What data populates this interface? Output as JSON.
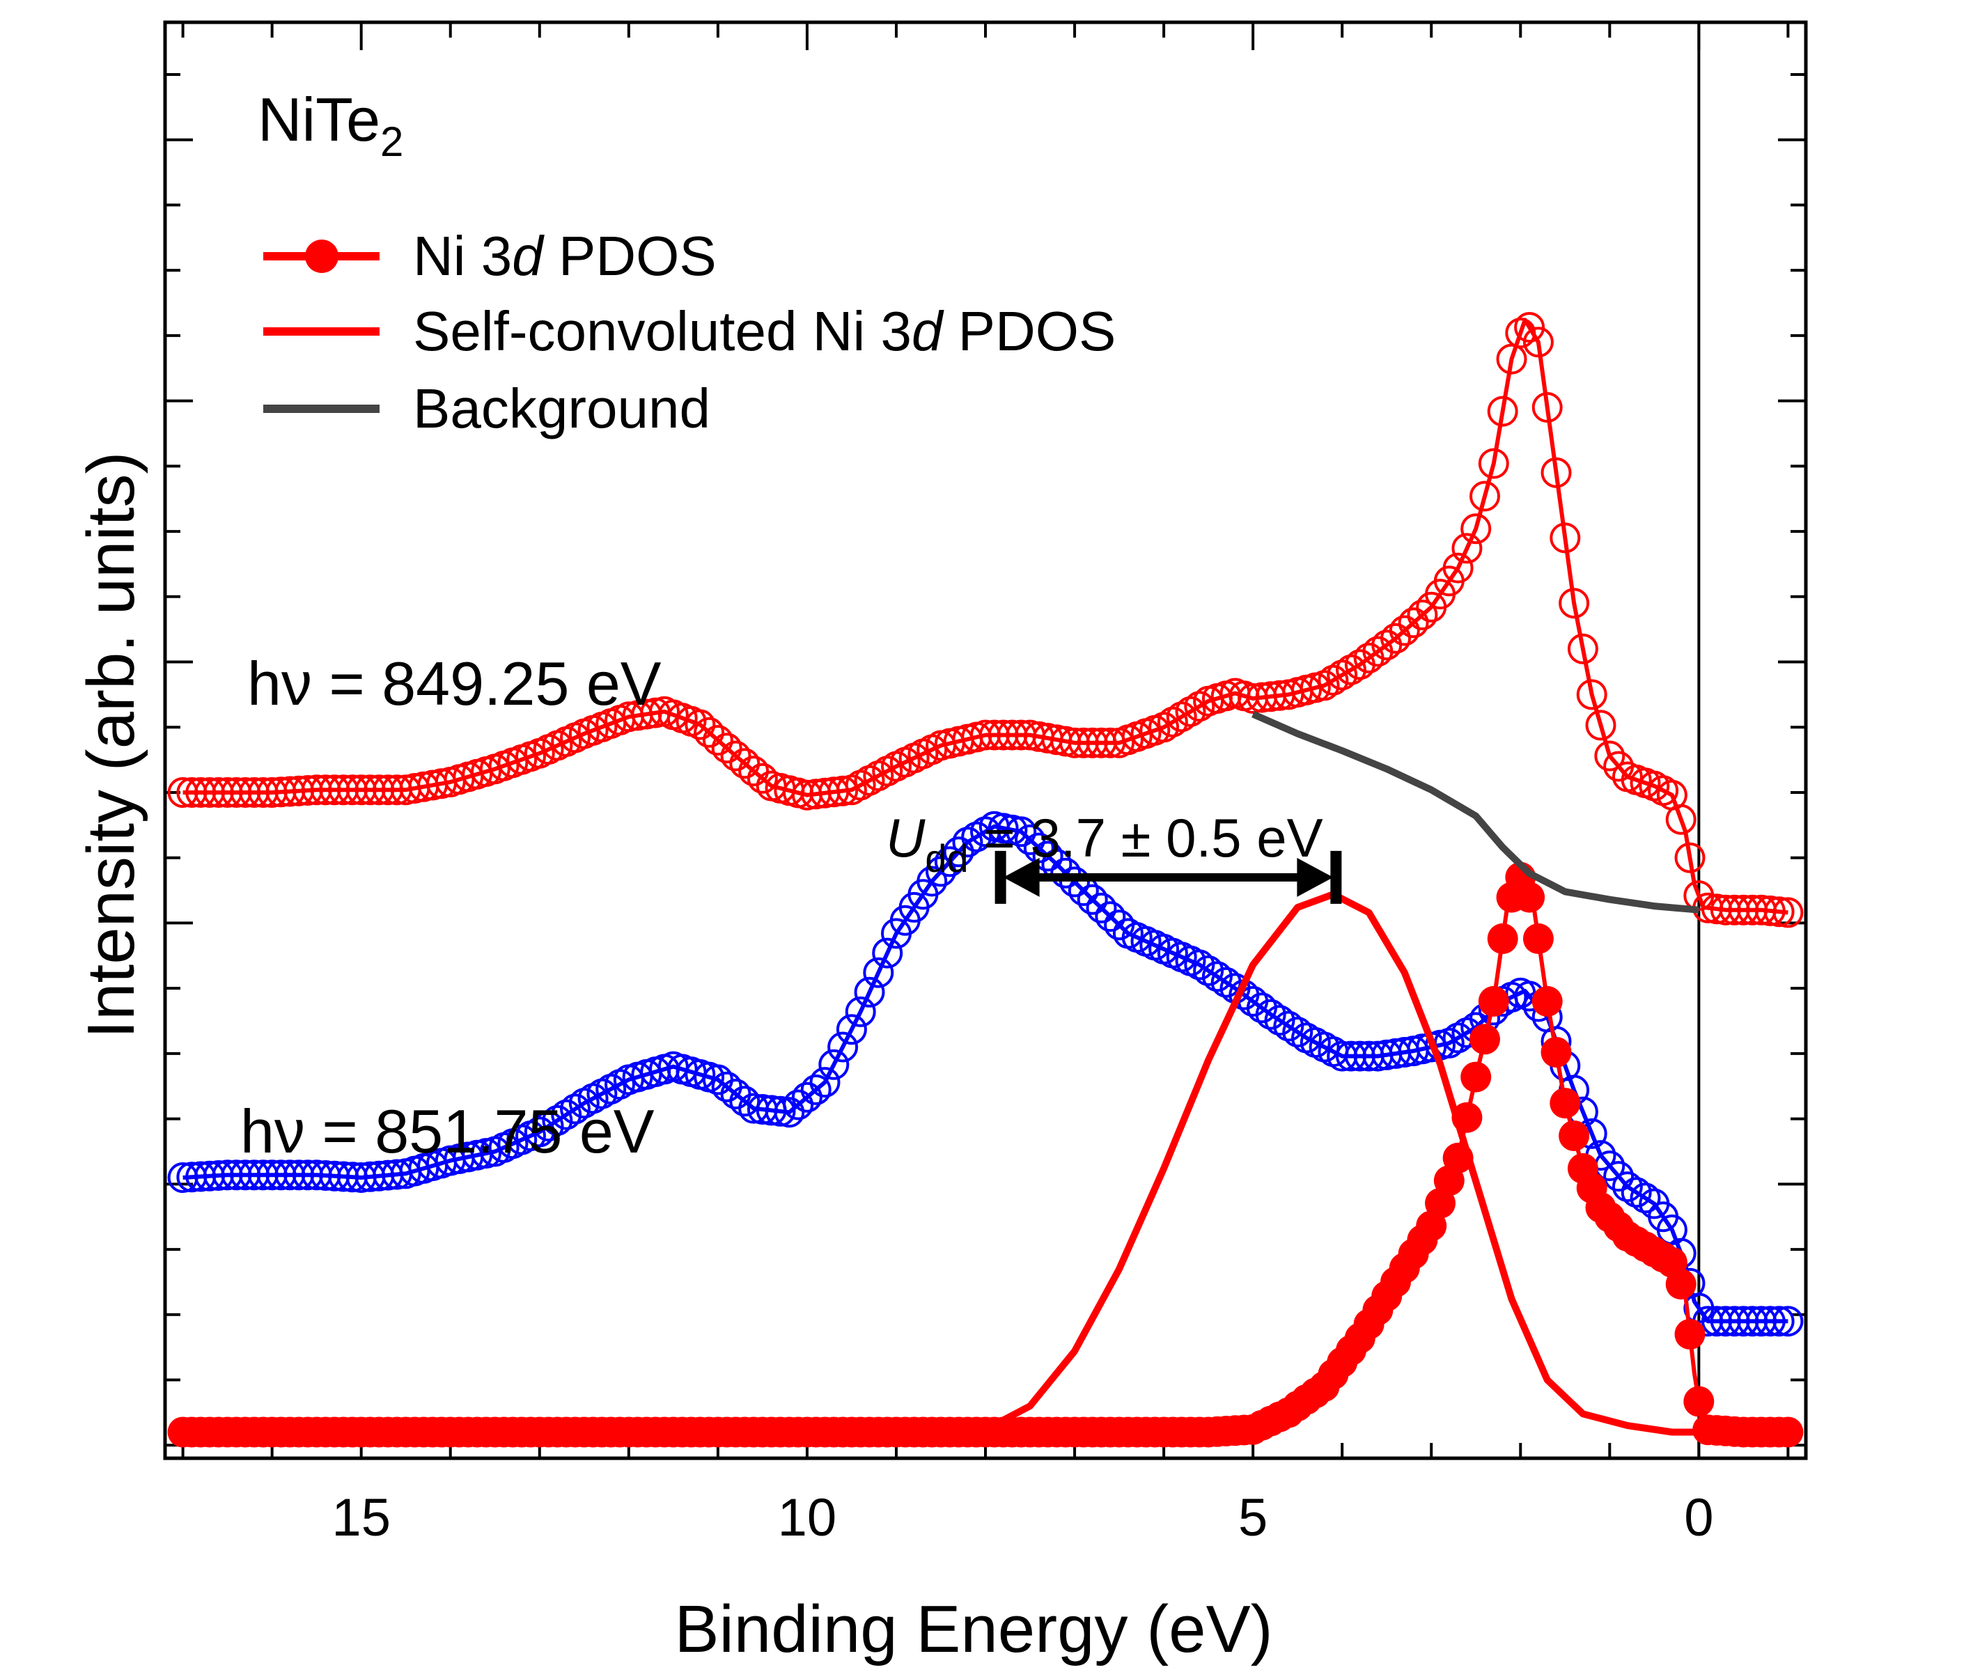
{
  "chart_data": {
    "type": "line",
    "sample": {
      "base": "NiTe",
      "sub": "2"
    },
    "xlabel": "Binding Energy (eV)",
    "ylabel": "Intensity (arb. units)",
    "x_reversed": true,
    "xlim": [
      17.2,
      -1.2
    ],
    "ylim": [
      -0.1,
      10.9
    ],
    "x_ticks": [
      "15",
      "10",
      "5",
      "0"
    ],
    "x_tick_values": [
      15,
      10,
      5,
      0
    ],
    "legend": [
      {
        "label_pre": "Ni 3",
        "label_italic": "d",
        "label_post": " PDOS",
        "style": "line-marker",
        "color": "#ff0000"
      },
      {
        "label_pre": "Self-convoluted Ni 3",
        "label_italic": "d",
        "label_post": " PDOS",
        "style": "line",
        "color": "#ff0000"
      },
      {
        "label_pre": "Background",
        "label_italic": "",
        "label_post": "",
        "style": "line",
        "color": "#444444"
      }
    ],
    "labels": {
      "top_spectrum": "hν = 849.25 eV",
      "bottom_spectrum": "hν = 851.75 eV",
      "udd_symbol": "U",
      "udd_sub": "dd",
      "udd_value": " = 3.7 ± 0.5 eV"
    },
    "udd_arrow": {
      "from_energy": 7.8,
      "to_energy": 4.1,
      "y": 4.35
    },
    "zero_line_energy": 0,
    "series": [
      {
        "name": "hν = 849.25 eV",
        "color": "#ff0000",
        "style": "open-circle-with-line",
        "points": [
          [
            17,
            5.0
          ],
          [
            16.5,
            5.0
          ],
          [
            16,
            5.0
          ],
          [
            15.5,
            5.02
          ],
          [
            15,
            5.02
          ],
          [
            14.5,
            5.02
          ],
          [
            14,
            5.08
          ],
          [
            13.5,
            5.18
          ],
          [
            13,
            5.3
          ],
          [
            12.5,
            5.45
          ],
          [
            12,
            5.58
          ],
          [
            11.6,
            5.62
          ],
          [
            11.2,
            5.52
          ],
          [
            10.8,
            5.28
          ],
          [
            10.4,
            5.05
          ],
          [
            10,
            4.98
          ],
          [
            9.5,
            5.02
          ],
          [
            9,
            5.2
          ],
          [
            8.5,
            5.36
          ],
          [
            8,
            5.44
          ],
          [
            7.5,
            5.44
          ],
          [
            7,
            5.38
          ],
          [
            6.5,
            5.38
          ],
          [
            6,
            5.5
          ],
          [
            5.5,
            5.7
          ],
          [
            5.2,
            5.76
          ],
          [
            5,
            5.72
          ],
          [
            4.6,
            5.75
          ],
          [
            4.2,
            5.82
          ],
          [
            3.8,
            5.98
          ],
          [
            3.4,
            6.18
          ],
          [
            3,
            6.42
          ],
          [
            2.7,
            6.72
          ],
          [
            2.5,
            7.02
          ],
          [
            2.3,
            7.52
          ],
          [
            2.1,
            8.32
          ],
          [
            1.95,
            8.62
          ],
          [
            1.8,
            8.45
          ],
          [
            1.6,
            7.45
          ],
          [
            1.4,
            6.45
          ],
          [
            1.2,
            5.75
          ],
          [
            1.0,
            5.28
          ],
          [
            0.8,
            5.12
          ],
          [
            0.5,
            5.05
          ],
          [
            0.3,
            4.98
          ],
          [
            0.15,
            4.7
          ],
          [
            0.05,
            4.3
          ],
          [
            -0.05,
            4.12
          ],
          [
            -0.3,
            4.1
          ],
          [
            -0.7,
            4.1
          ],
          [
            -1.0,
            4.08
          ]
        ]
      },
      {
        "name": "hν = 851.75 eV",
        "color": "#0000ff",
        "style": "open-circle-with-line",
        "points": [
          [
            17,
            2.05
          ],
          [
            16.5,
            2.07
          ],
          [
            16,
            2.07
          ],
          [
            15.5,
            2.07
          ],
          [
            15,
            2.05
          ],
          [
            14.5,
            2.08
          ],
          [
            14,
            2.18
          ],
          [
            13.5,
            2.25
          ],
          [
            13,
            2.4
          ],
          [
            12.5,
            2.62
          ],
          [
            12,
            2.8
          ],
          [
            11.5,
            2.9
          ],
          [
            11,
            2.8
          ],
          [
            10.6,
            2.58
          ],
          [
            10.2,
            2.55
          ],
          [
            9.8,
            2.78
          ],
          [
            9.4,
            3.32
          ],
          [
            9,
            3.92
          ],
          [
            8.6,
            4.32
          ],
          [
            8.2,
            4.62
          ],
          [
            7.9,
            4.74
          ],
          [
            7.6,
            4.7
          ],
          [
            7.2,
            4.45
          ],
          [
            6.8,
            4.18
          ],
          [
            6.4,
            3.92
          ],
          [
            6,
            3.8
          ],
          [
            5.6,
            3.68
          ],
          [
            5.2,
            3.5
          ],
          [
            4.8,
            3.3
          ],
          [
            4.4,
            3.12
          ],
          [
            4,
            2.98
          ],
          [
            3.6,
            2.98
          ],
          [
            3.2,
            3.02
          ],
          [
            2.8,
            3.08
          ],
          [
            2.5,
            3.2
          ],
          [
            2.2,
            3.4
          ],
          [
            1.95,
            3.48
          ],
          [
            1.7,
            3.28
          ],
          [
            1.4,
            2.72
          ],
          [
            1.1,
            2.22
          ],
          [
            0.8,
            1.98
          ],
          [
            0.5,
            1.85
          ],
          [
            0.3,
            1.65
          ],
          [
            0.15,
            1.38
          ],
          [
            0.05,
            1.1
          ],
          [
            -0.1,
            0.95
          ],
          [
            -0.5,
            0.95
          ],
          [
            -1.0,
            0.95
          ]
        ]
      },
      {
        "name": "Ni 3d PDOS",
        "color": "#ff0000",
        "style": "filled-circle-with-line",
        "points": [
          [
            17,
            0.1
          ],
          [
            15,
            0.1
          ],
          [
            13,
            0.1
          ],
          [
            11,
            0.1
          ],
          [
            9,
            0.1
          ],
          [
            7,
            0.1
          ],
          [
            5.5,
            0.1
          ],
          [
            5,
            0.12
          ],
          [
            4.6,
            0.25
          ],
          [
            4.2,
            0.45
          ],
          [
            3.8,
            0.82
          ],
          [
            3.4,
            1.25
          ],
          [
            3.0,
            1.68
          ],
          [
            2.7,
            2.2
          ],
          [
            2.5,
            2.82
          ],
          [
            2.3,
            3.4
          ],
          [
            2.15,
            4.12
          ],
          [
            2.0,
            4.35
          ],
          [
            1.85,
            4.12
          ],
          [
            1.7,
            3.4
          ],
          [
            1.5,
            2.62
          ],
          [
            1.3,
            2.12
          ],
          [
            1.1,
            1.82
          ],
          [
            0.8,
            1.6
          ],
          [
            0.5,
            1.48
          ],
          [
            0.3,
            1.4
          ],
          [
            0.15,
            1.15
          ],
          [
            0.05,
            0.55
          ],
          [
            -0.05,
            0.12
          ],
          [
            -0.5,
            0.1
          ],
          [
            -1.0,
            0.1
          ]
        ]
      },
      {
        "name": "Self-convoluted Ni 3d PDOS",
        "color": "#ff0000",
        "style": "line",
        "points": [
          [
            17,
            0.1
          ],
          [
            9,
            0.1
          ],
          [
            8,
            0.12
          ],
          [
            7.5,
            0.3
          ],
          [
            7,
            0.72
          ],
          [
            6.5,
            1.35
          ],
          [
            6,
            2.12
          ],
          [
            5.5,
            2.95
          ],
          [
            5,
            3.68
          ],
          [
            4.5,
            4.12
          ],
          [
            4.1,
            4.22
          ],
          [
            3.7,
            4.08
          ],
          [
            3.3,
            3.62
          ],
          [
            2.9,
            2.92
          ],
          [
            2.5,
            2.02
          ],
          [
            2.1,
            1.12
          ],
          [
            1.7,
            0.5
          ],
          [
            1.3,
            0.24
          ],
          [
            0.8,
            0.15
          ],
          [
            0.3,
            0.1
          ],
          [
            0,
            0.1
          ]
        ]
      },
      {
        "name": "Background",
        "color": "#444444",
        "style": "line",
        "points": [
          [
            5,
            5.6
          ],
          [
            4.5,
            5.45
          ],
          [
            4,
            5.32
          ],
          [
            3.5,
            5.18
          ],
          [
            3,
            5.02
          ],
          [
            2.5,
            4.82
          ],
          [
            2.2,
            4.58
          ],
          [
            1.9,
            4.38
          ],
          [
            1.5,
            4.24
          ],
          [
            1,
            4.18
          ],
          [
            0.5,
            4.13
          ],
          [
            0,
            4.1
          ]
        ]
      }
    ]
  }
}
